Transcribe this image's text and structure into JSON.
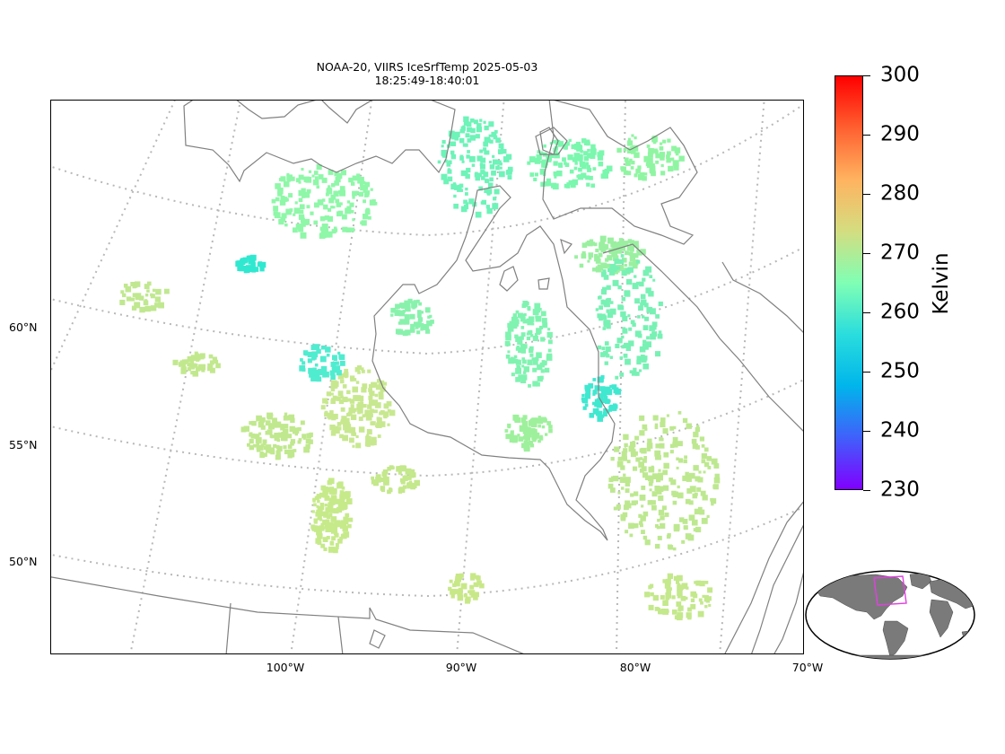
{
  "title": {
    "line1": "NOAA-20, VIIRS IceSrfTemp 2025-05-03",
    "line2": "18:25:49-18:40:01"
  },
  "map": {
    "lat_labels": [
      "60°N",
      "55°N",
      "50°N"
    ],
    "lon_labels": [
      "100°W",
      "90°W",
      "80°W",
      "70°W"
    ],
    "coastline_color": "#808080",
    "graticule_color": "#b8b8b8"
  },
  "colorbar": {
    "colormap": "rainbow",
    "unit": "Kelvin",
    "min": 230,
    "max": 300,
    "ticks": [
      "230",
      "240",
      "250",
      "260",
      "270",
      "280",
      "290",
      "300"
    ]
  },
  "inset": {
    "land_color": "#7a7a7a",
    "box_color": "#e040e0"
  }
}
